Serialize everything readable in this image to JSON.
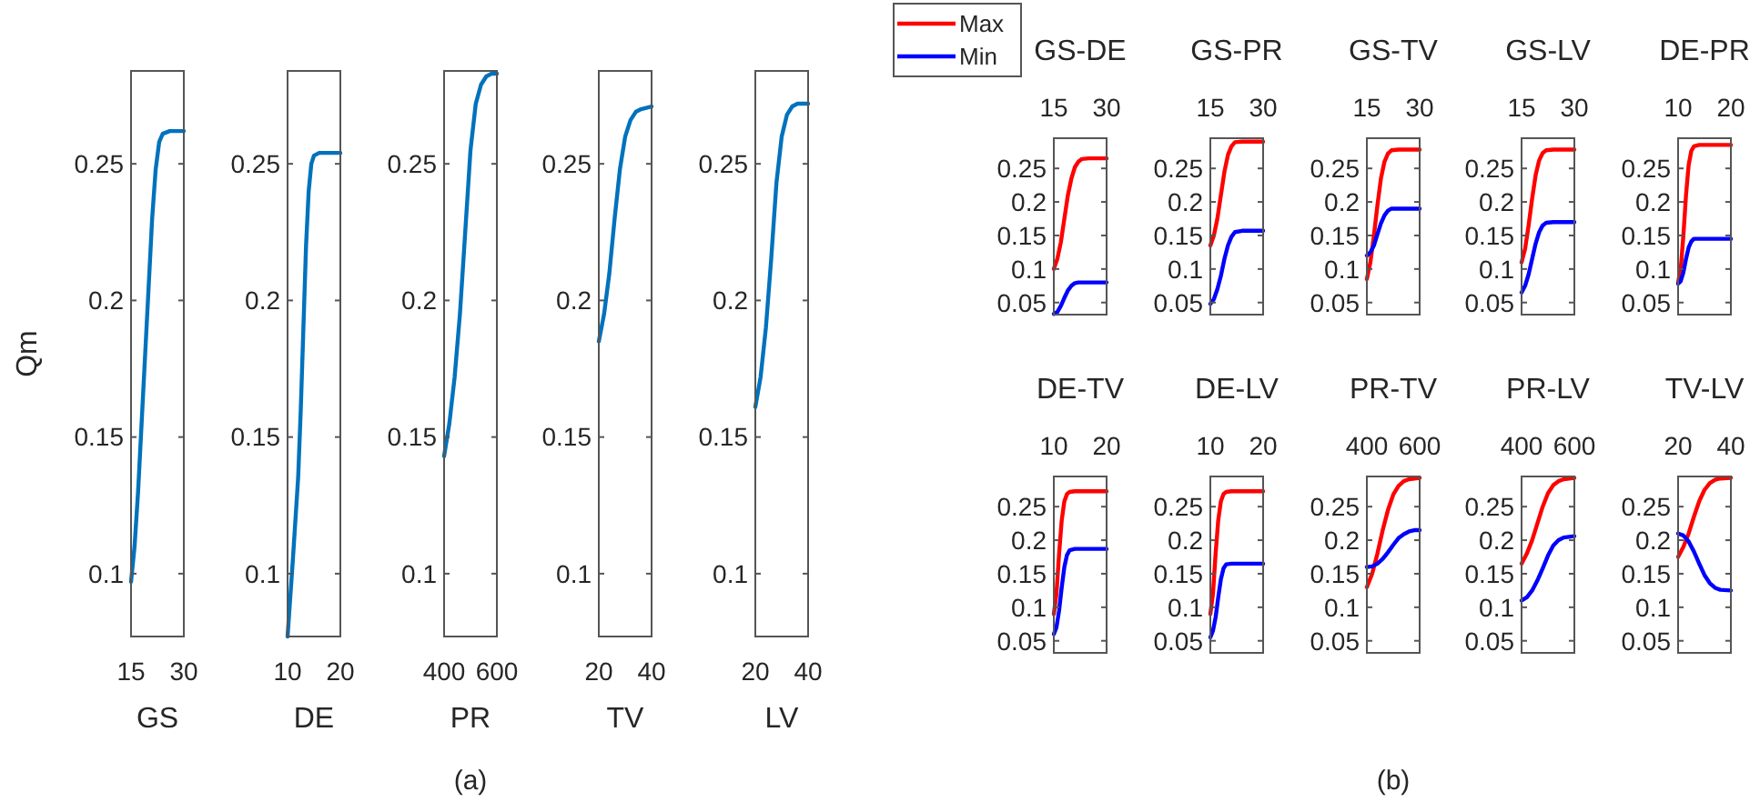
{
  "chart_data": [
    {
      "type": "line",
      "xlabel": "GS",
      "ylabel": "Qm",
      "xlim": [
        15,
        30
      ],
      "xticks": [
        15,
        30
      ],
      "ylim": [
        0.077,
        0.284
      ],
      "yticks": [
        0.1,
        0.15,
        0.2,
        0.25
      ],
      "series": [
        {
          "color": "#0072bd",
          "x": [
            15,
            16,
            17,
            18,
            19,
            20,
            21,
            22,
            23,
            24,
            26,
            30
          ],
          "values": [
            0.097,
            0.11,
            0.13,
            0.155,
            0.18,
            0.205,
            0.23,
            0.248,
            0.258,
            0.261,
            0.262,
            0.262
          ]
        }
      ]
    },
    {
      "type": "line",
      "xlabel": "DE",
      "xlim": [
        10,
        20
      ],
      "xticks": [
        10,
        20
      ],
      "ylim": [
        0.077,
        0.284
      ],
      "yticks": [
        0.1,
        0.15,
        0.2,
        0.25
      ],
      "series": [
        {
          "color": "#0072bd",
          "x": [
            10,
            11,
            12,
            12.5,
            13,
            13.5,
            14,
            14.5,
            15,
            16,
            20
          ],
          "values": [
            0.077,
            0.105,
            0.135,
            0.16,
            0.19,
            0.22,
            0.24,
            0.25,
            0.253,
            0.254,
            0.254
          ]
        }
      ]
    },
    {
      "type": "line",
      "xlabel": "PR",
      "xlim": [
        400,
        600
      ],
      "xticks": [
        400,
        600
      ],
      "ylim": [
        0.077,
        0.284
      ],
      "yticks": [
        0.1,
        0.15,
        0.2,
        0.25
      ],
      "annotations": [
        "(a)"
      ],
      "series": [
        {
          "color": "#0072bd",
          "x": [
            400,
            420,
            440,
            460,
            480,
            500,
            520,
            540,
            560,
            580,
            600
          ],
          "values": [
            0.143,
            0.155,
            0.172,
            0.195,
            0.225,
            0.255,
            0.272,
            0.279,
            0.282,
            0.283,
            0.283
          ]
        }
      ]
    },
    {
      "type": "line",
      "xlabel": "TV",
      "xlim": [
        20,
        40
      ],
      "xticks": [
        20,
        40
      ],
      "ylim": [
        0.077,
        0.284
      ],
      "yticks": [
        0.1,
        0.15,
        0.2,
        0.25
      ],
      "series": [
        {
          "color": "#0072bd",
          "x": [
            20,
            22,
            24,
            26,
            28,
            30,
            32,
            34,
            36,
            40
          ],
          "values": [
            0.185,
            0.195,
            0.21,
            0.23,
            0.248,
            0.26,
            0.266,
            0.269,
            0.27,
            0.271
          ]
        }
      ]
    },
    {
      "type": "line",
      "xlabel": "LV",
      "xlim": [
        20,
        40
      ],
      "xticks": [
        20,
        40
      ],
      "ylim": [
        0.077,
        0.284
      ],
      "yticks": [
        0.1,
        0.15,
        0.2,
        0.25
      ],
      "series": [
        {
          "color": "#0072bd",
          "x": [
            20,
            22,
            24,
            26,
            28,
            30,
            32,
            34,
            36,
            40
          ],
          "values": [
            0.161,
            0.172,
            0.19,
            0.215,
            0.243,
            0.26,
            0.268,
            0.271,
            0.272,
            0.272
          ]
        }
      ]
    },
    {
      "type": "line",
      "title": "GS-DE",
      "xlim": [
        15,
        30
      ],
      "xticks": [
        15,
        30
      ],
      "ylim": [
        0.032,
        0.295
      ],
      "yticks": [
        0.05,
        0.1,
        0.15,
        0.2,
        0.25
      ],
      "legend": "top left",
      "series": [
        {
          "name": "Max",
          "color": "#ff0000",
          "x": [
            15,
            16,
            17,
            18,
            19,
            20,
            21,
            22,
            23,
            25,
            30
          ],
          "values": [
            0.1,
            0.115,
            0.14,
            0.175,
            0.21,
            0.235,
            0.252,
            0.26,
            0.264,
            0.265,
            0.265
          ]
        },
        {
          "name": "Min",
          "color": "#0000ff",
          "x": [
            15,
            16,
            17,
            18,
            19,
            20,
            21,
            22,
            30
          ],
          "values": [
            0.033,
            0.036,
            0.045,
            0.057,
            0.068,
            0.075,
            0.079,
            0.08,
            0.08
          ]
        }
      ]
    },
    {
      "type": "line",
      "title": "GS-PR",
      "xlim": [
        15,
        30
      ],
      "xticks": [
        15,
        30
      ],
      "ylim": [
        0.032,
        0.295
      ],
      "yticks": [
        0.05,
        0.1,
        0.15,
        0.2,
        0.25
      ],
      "series": [
        {
          "color": "#ff0000",
          "x": [
            15,
            16,
            17,
            18,
            19,
            20,
            21,
            22,
            24,
            30
          ],
          "values": [
            0.135,
            0.15,
            0.175,
            0.21,
            0.245,
            0.27,
            0.283,
            0.289,
            0.29,
            0.29
          ]
        },
        {
          "color": "#0000ff",
          "x": [
            15,
            16,
            17,
            18,
            19,
            20,
            21,
            22,
            24,
            30
          ],
          "values": [
            0.048,
            0.055,
            0.07,
            0.09,
            0.115,
            0.135,
            0.148,
            0.155,
            0.157,
            0.157
          ]
        }
      ]
    },
    {
      "type": "line",
      "title": "GS-TV",
      "xlim": [
        15,
        30
      ],
      "xticks": [
        15,
        30
      ],
      "ylim": [
        0.032,
        0.295
      ],
      "yticks": [
        0.05,
        0.1,
        0.15,
        0.2,
        0.25
      ],
      "series": [
        {
          "color": "#ff0000",
          "x": [
            15,
            16,
            17,
            18,
            19,
            20,
            21,
            22,
            24,
            30
          ],
          "values": [
            0.085,
            0.11,
            0.15,
            0.195,
            0.235,
            0.26,
            0.272,
            0.277,
            0.278,
            0.278
          ]
        },
        {
          "color": "#0000ff",
          "x": [
            15,
            16,
            17,
            18,
            19,
            20,
            21,
            22,
            30
          ],
          "values": [
            0.12,
            0.125,
            0.135,
            0.152,
            0.168,
            0.18,
            0.187,
            0.19,
            0.19
          ]
        }
      ]
    },
    {
      "type": "line",
      "title": "GS-LV",
      "xlim": [
        15,
        30
      ],
      "xticks": [
        15,
        30
      ],
      "ylim": [
        0.032,
        0.295
      ],
      "yticks": [
        0.05,
        0.1,
        0.15,
        0.2,
        0.25
      ],
      "series": [
        {
          "color": "#ff0000",
          "x": [
            15,
            16,
            17,
            18,
            19,
            20,
            21,
            22,
            24,
            30
          ],
          "values": [
            0.11,
            0.13,
            0.165,
            0.205,
            0.24,
            0.262,
            0.273,
            0.277,
            0.278,
            0.278
          ]
        },
        {
          "color": "#0000ff",
          "x": [
            15,
            16,
            17,
            18,
            19,
            20,
            21,
            22,
            24,
            30
          ],
          "values": [
            0.065,
            0.075,
            0.092,
            0.115,
            0.138,
            0.155,
            0.165,
            0.169,
            0.17,
            0.17
          ]
        }
      ]
    },
    {
      "type": "line",
      "title": "DE-PR",
      "xlim": [
        10,
        20
      ],
      "xticks": [
        10,
        20
      ],
      "ylim": [
        0.032,
        0.295
      ],
      "yticks": [
        0.05,
        0.1,
        0.15,
        0.2,
        0.25
      ],
      "series": [
        {
          "color": "#ff0000",
          "x": [
            10,
            10.5,
            11,
            11.5,
            12,
            12.5,
            13,
            14,
            20
          ],
          "values": [
            0.08,
            0.1,
            0.15,
            0.21,
            0.255,
            0.276,
            0.283,
            0.285,
            0.285
          ]
        },
        {
          "color": "#0000ff",
          "x": [
            10,
            10.5,
            11,
            11.5,
            12,
            12.5,
            13,
            20
          ],
          "values": [
            0.078,
            0.082,
            0.095,
            0.115,
            0.132,
            0.141,
            0.145,
            0.145
          ]
        }
      ]
    },
    {
      "type": "line",
      "title": "DE-TV",
      "xlim": [
        10,
        20
      ],
      "xticks": [
        10,
        20
      ],
      "ylim": [
        0.032,
        0.295
      ],
      "yticks": [
        0.05,
        0.1,
        0.15,
        0.2,
        0.25
      ],
      "series": [
        {
          "color": "#ff0000",
          "x": [
            10,
            10.5,
            11,
            11.5,
            12,
            12.5,
            13,
            14,
            20
          ],
          "values": [
            0.09,
            0.12,
            0.18,
            0.23,
            0.258,
            0.269,
            0.272,
            0.273,
            0.273
          ]
        },
        {
          "color": "#0000ff",
          "x": [
            10,
            10.5,
            11,
            11.5,
            12,
            12.5,
            13,
            14,
            20
          ],
          "values": [
            0.06,
            0.07,
            0.095,
            0.13,
            0.16,
            0.178,
            0.185,
            0.187,
            0.187
          ]
        }
      ]
    },
    {
      "type": "line",
      "title": "DE-LV",
      "xlim": [
        10,
        20
      ],
      "xticks": [
        10,
        20
      ],
      "ylim": [
        0.032,
        0.295
      ],
      "yticks": [
        0.05,
        0.1,
        0.15,
        0.2,
        0.25
      ],
      "series": [
        {
          "color": "#ff0000",
          "x": [
            10,
            10.5,
            11,
            11.5,
            12,
            12.5,
            13,
            14,
            20
          ],
          "values": [
            0.09,
            0.12,
            0.18,
            0.23,
            0.258,
            0.269,
            0.272,
            0.273,
            0.273
          ]
        },
        {
          "color": "#0000ff",
          "x": [
            10,
            10.5,
            11,
            11.5,
            12,
            12.5,
            13,
            14,
            20
          ],
          "values": [
            0.055,
            0.065,
            0.085,
            0.115,
            0.142,
            0.158,
            0.164,
            0.165,
            0.165
          ]
        }
      ]
    },
    {
      "type": "line",
      "title": "PR-TV",
      "xlim": [
        400,
        600
      ],
      "xticks": [
        400,
        600
      ],
      "ylim": [
        0.032,
        0.295
      ],
      "yticks": [
        0.05,
        0.1,
        0.15,
        0.2,
        0.25
      ],
      "annotations": [
        "(b)"
      ],
      "series": [
        {
          "color": "#ff0000",
          "x": [
            400,
            420,
            440,
            460,
            480,
            500,
            520,
            540,
            560,
            580,
            600
          ],
          "values": [
            0.13,
            0.15,
            0.18,
            0.215,
            0.245,
            0.268,
            0.281,
            0.288,
            0.291,
            0.292,
            0.293
          ]
        },
        {
          "color": "#0000ff",
          "x": [
            400,
            420,
            440,
            460,
            480,
            500,
            520,
            540,
            560,
            580,
            600
          ],
          "values": [
            0.16,
            0.161,
            0.165,
            0.172,
            0.182,
            0.193,
            0.203,
            0.209,
            0.213,
            0.215,
            0.215
          ]
        }
      ]
    },
    {
      "type": "line",
      "title": "PR-LV",
      "xlim": [
        400,
        600
      ],
      "xticks": [
        400,
        600
      ],
      "ylim": [
        0.032,
        0.295
      ],
      "yticks": [
        0.05,
        0.1,
        0.15,
        0.2,
        0.25
      ],
      "series": [
        {
          "color": "#ff0000",
          "x": [
            400,
            420,
            440,
            460,
            480,
            500,
            520,
            540,
            560,
            600
          ],
          "values": [
            0.165,
            0.18,
            0.2,
            0.225,
            0.25,
            0.27,
            0.282,
            0.288,
            0.291,
            0.293
          ]
        },
        {
          "color": "#0000ff",
          "x": [
            400,
            420,
            440,
            460,
            480,
            500,
            520,
            540,
            560,
            600
          ],
          "values": [
            0.11,
            0.115,
            0.125,
            0.14,
            0.158,
            0.177,
            0.192,
            0.2,
            0.204,
            0.206
          ]
        }
      ]
    },
    {
      "type": "line",
      "title": "TV-LV",
      "xlim": [
        20,
        40
      ],
      "xticks": [
        20,
        40
      ],
      "ylim": [
        0.032,
        0.295
      ],
      "yticks": [
        0.05,
        0.1,
        0.15,
        0.2,
        0.25
      ],
      "series": [
        {
          "color": "#ff0000",
          "x": [
            20,
            22,
            24,
            26,
            28,
            30,
            32,
            34,
            36,
            40
          ],
          "values": [
            0.175,
            0.19,
            0.21,
            0.235,
            0.258,
            0.275,
            0.285,
            0.29,
            0.292,
            0.293
          ]
        },
        {
          "color": "#0000ff",
          "x": [
            20,
            22,
            24,
            26,
            28,
            30,
            32,
            34,
            36,
            40
          ],
          "values": [
            0.21,
            0.207,
            0.198,
            0.183,
            0.165,
            0.148,
            0.136,
            0.129,
            0.126,
            0.125
          ]
        }
      ]
    }
  ]
}
